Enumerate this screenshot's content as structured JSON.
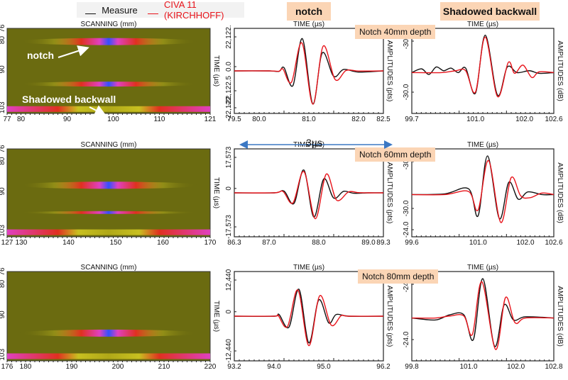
{
  "legend": {
    "measure_label": "Measure",
    "civa_label": "CIVA 11 (KIRCHHOFF)",
    "measure_color": "#111111",
    "civa_color": "#e8141b"
  },
  "headers": {
    "notch": "notch",
    "backwall": "Shadowed backwall"
  },
  "annotations": {
    "notch": "notch",
    "shadowed_backwall": "Shadowed backwall",
    "span": "3µs",
    "arrow_color": "#3b78c4"
  },
  "depth_labels": [
    "Notch 40mm depth",
    "Notch 60mm depth",
    "Notch 80mm depth"
  ],
  "chart_data": [
    {
      "id": "bscan-40",
      "type": "heatmap",
      "title": "SCANNING (mm)",
      "ylabel": "TIME (µs)",
      "xlim": [
        77,
        121
      ],
      "xticks": [
        "77",
        "80",
        "90",
        "100",
        "110",
        "121"
      ],
      "ylim": [
        76,
        105
      ],
      "yticks": [
        "76",
        "80",
        "90",
        "103"
      ],
      "echoes": [
        {
          "name": "notch",
          "time": 80.5,
          "x_center": 100,
          "intensity": "high"
        },
        {
          "name": "shadowed-backwall-ghost",
          "time": 95,
          "x_center": 100,
          "intensity": "medium"
        },
        {
          "name": "backwall",
          "time": 103.5,
          "x_center": "edges",
          "intensity": "high"
        }
      ]
    },
    {
      "id": "ascan-notch-40",
      "type": "line",
      "xlabel": "TIME (µs)",
      "ylabel": "AMPLITUDES (pts)",
      "xlim": [
        79.5,
        82.5
      ],
      "xticks": [
        "79.5",
        "80.0",
        "81.0",
        "82.0",
        "82.5"
      ],
      "ylim": [
        -25000,
        25000
      ],
      "yticks": [
        "22,122.",
        "0.0",
        "-22,122.5",
        "-22,122."
      ],
      "series": [
        {
          "name": "Measure",
          "x": [
            79.5,
            80.2,
            80.4,
            80.5,
            80.68,
            80.87,
            81.08,
            81.27,
            81.5,
            81.7,
            82.0,
            82.5
          ],
          "y": [
            0,
            0,
            -300,
            2200,
            -9800,
            21500,
            -22100,
            12000,
            -3600,
            1000,
            -800,
            0
          ]
        },
        {
          "name": "CIVA 11 (KIRCHHOFF)",
          "x": [
            79.5,
            80.2,
            80.4,
            80.48,
            80.65,
            80.86,
            81.08,
            81.29,
            81.53,
            81.75,
            82.0,
            82.5
          ],
          "y": [
            0,
            0,
            -200,
            1200,
            -7600,
            18700,
            -22200,
            16600,
            -5800,
            300,
            -100,
            0
          ]
        }
      ]
    },
    {
      "id": "ascan-backwall-40",
      "type": "line",
      "xlabel": "TIME (µs)",
      "ylabel": "AMPLITUDES (dB)",
      "xlim": [
        99.7,
        102.6
      ],
      "xticks": [
        "99.7",
        "101.0",
        "102.0",
        "102.6"
      ],
      "yticks": [
        "-30.0",
        "-30.0"
      ],
      "series": [
        {
          "name": "Measure",
          "x": [
            99.7,
            99.9,
            100.05,
            100.2,
            100.35,
            100.5,
            100.65,
            100.8,
            101.0,
            101.2,
            101.45,
            101.65,
            101.85,
            102.1,
            102.3,
            102.6
          ],
          "y": [
            0,
            0.1,
            -0.05,
            0.15,
            0.05,
            0.12,
            0.0,
            0.12,
            -0.55,
            1.0,
            -0.6,
            0.15,
            0.0,
            0.05,
            -0.02,
            0
          ],
          "scale": "normalized"
        },
        {
          "name": "CIVA 11 (KIRCHHOFF)",
          "x": [
            99.7,
            100.3,
            100.6,
            100.8,
            101.0,
            101.2,
            101.45,
            101.67,
            101.8,
            101.97,
            102.15,
            102.3,
            102.6
          ],
          "y": [
            0,
            0,
            0.05,
            0.05,
            -0.52,
            0.95,
            -0.64,
            0.27,
            -0.02,
            0.2,
            -0.13,
            0.02,
            0
          ],
          "scale": "normalized"
        }
      ]
    },
    {
      "id": "bscan-60",
      "type": "heatmap",
      "title": "SCANNING (mm)",
      "ylabel": "TIME (µs)",
      "xlim": [
        127,
        170
      ],
      "xticks": [
        "127",
        "130",
        "140",
        "150",
        "160",
        "170"
      ],
      "ylim": [
        76,
        105
      ],
      "yticks": [
        "76",
        "80",
        "90",
        "103"
      ],
      "echoes": [
        {
          "name": "notch",
          "time": 88,
          "x_center": 150,
          "intensity": "high"
        },
        {
          "name": "shadowed-backwall-ghost",
          "time": 97,
          "x_center": 150,
          "intensity": "low"
        },
        {
          "name": "backwall",
          "time": 103.5,
          "x_center": "edges",
          "intensity": "high"
        }
      ]
    },
    {
      "id": "ascan-notch-60",
      "type": "line",
      "xlabel": "TIME (µs)",
      "ylabel": "AMPLITUDES (pts)",
      "xlim": [
        86.3,
        89.3
      ],
      "xticks": [
        "86.3",
        "87.0",
        "88.0",
        "89.0",
        "89.3"
      ],
      "ylim": [
        -20000,
        20000
      ],
      "yticks": [
        "17,573",
        "0",
        "-17,573"
      ],
      "series": [
        {
          "name": "Measure",
          "x": [
            86.3,
            87.1,
            87.3,
            87.5,
            87.7,
            87.9,
            88.1,
            88.3,
            88.5,
            88.7,
            89.0,
            89.3
          ],
          "y": [
            0,
            0,
            900,
            -5500,
            11800,
            -12500,
            7200,
            -2700,
            800,
            -200,
            0,
            0
          ]
        },
        {
          "name": "CIVA 11 (KIRCHHOFF)",
          "x": [
            86.3,
            87.1,
            87.28,
            87.48,
            87.7,
            87.93,
            88.15,
            88.36,
            88.6,
            88.8,
            89.0,
            89.3
          ],
          "y": [
            0,
            0,
            700,
            -5200,
            11000,
            -13400,
            9700,
            -3800,
            500,
            100,
            0,
            0
          ]
        }
      ]
    },
    {
      "id": "ascan-backwall-60",
      "type": "line",
      "xlabel": "TIME (µs)",
      "ylabel": "AMPLITUDES (dB)",
      "xlim": [
        99.6,
        102.6
      ],
      "xticks": [
        "99.6",
        "101.0",
        "102.0",
        "102.6"
      ],
      "yticks": [
        "-30.0",
        "-30.0",
        "-24.0"
      ],
      "series": [
        {
          "name": "Measure",
          "x": [
            99.6,
            100.3,
            100.8,
            101.0,
            101.2,
            101.45,
            101.65,
            101.85,
            102.05,
            102.35,
            102.6
          ],
          "y": [
            0,
            0.02,
            0.15,
            -0.55,
            1.0,
            -0.62,
            0.32,
            -0.12,
            0.07,
            0,
            0
          ],
          "scale": "normalized"
        },
        {
          "name": "CIVA 11 (KIRCHHOFF)",
          "x": [
            99.6,
            100.3,
            100.8,
            101.0,
            101.22,
            101.48,
            101.7,
            101.9,
            102.1,
            102.35,
            102.6
          ],
          "y": [
            0,
            0,
            0.08,
            -0.4,
            0.88,
            -0.72,
            0.44,
            -0.03,
            -0.08,
            0.04,
            0
          ],
          "scale": "normalized"
        }
      ]
    },
    {
      "id": "bscan-80",
      "type": "heatmap",
      "title": "SCANNING (mm)",
      "ylabel": "TIME (µs)",
      "xlim": [
        176,
        220
      ],
      "xticks": [
        "176",
        "180",
        "190",
        "200",
        "210",
        "220"
      ],
      "ylim": [
        76,
        105
      ],
      "yticks": [
        "76",
        "80",
        "90",
        "103"
      ],
      "echoes": [
        {
          "name": "notch",
          "time": 96,
          "x_center": 200,
          "intensity": "high"
        },
        {
          "name": "backwall",
          "time": 103.5,
          "x_center": "edges",
          "intensity": "high"
        }
      ]
    },
    {
      "id": "ascan-notch-80",
      "type": "line",
      "xlabel": "TIME (µs)",
      "ylabel": "AMPLITUDES (pts)",
      "xlim": [
        93.2,
        96.2
      ],
      "xticks": [
        "93.2",
        "94.0",
        "95.0",
        "96.2"
      ],
      "ylim": [
        -14000,
        14000
      ],
      "yticks": [
        "12,440",
        "0",
        "-12,440"
      ],
      "series": [
        {
          "name": "Measure",
          "x": [
            93.2,
            94.0,
            94.1,
            94.3,
            94.5,
            94.7,
            94.9,
            95.1,
            95.25,
            95.5,
            96.2
          ],
          "y": [
            0,
            0,
            600,
            -3900,
            9600,
            -9500,
            5800,
            -2400,
            600,
            0,
            0
          ]
        },
        {
          "name": "CIVA 11 (KIRCHHOFF)",
          "x": [
            93.2,
            94.0,
            94.08,
            94.27,
            94.48,
            94.7,
            94.92,
            95.15,
            95.35,
            95.5,
            96.2
          ],
          "y": [
            0,
            0,
            300,
            -3700,
            9300,
            -10500,
            7300,
            -3200,
            200,
            0,
            0
          ]
        }
      ]
    },
    {
      "id": "ascan-backwall-80",
      "type": "line",
      "xlabel": "TIME (µs)",
      "ylabel": "AMPLITUDES (dB)",
      "xlim": [
        99.8,
        102.8
      ],
      "xticks": [
        "99.8",
        "101.0",
        "102.0",
        "102.8"
      ],
      "yticks": [
        "-24.0",
        "-24.0"
      ],
      "series": [
        {
          "name": "Measure",
          "x": [
            99.8,
            100.3,
            100.6,
            100.9,
            101.1,
            101.3,
            101.55,
            101.75,
            101.95,
            102.2,
            102.8
          ],
          "y": [
            0,
            -0.05,
            0.08,
            0.08,
            -0.55,
            1.0,
            -0.72,
            0.33,
            -0.05,
            0.03,
            0
          ],
          "scale": "normalized"
        },
        {
          "name": "CIVA 11 (KIRCHHOFF)",
          "x": [
            99.8,
            100.3,
            100.6,
            100.9,
            101.08,
            101.28,
            101.57,
            101.78,
            101.98,
            102.2,
            102.8
          ],
          "y": [
            0,
            0,
            0.05,
            0.05,
            -0.42,
            0.92,
            -0.8,
            0.52,
            -0.12,
            0,
            0
          ],
          "scale": "normalized"
        }
      ]
    }
  ]
}
